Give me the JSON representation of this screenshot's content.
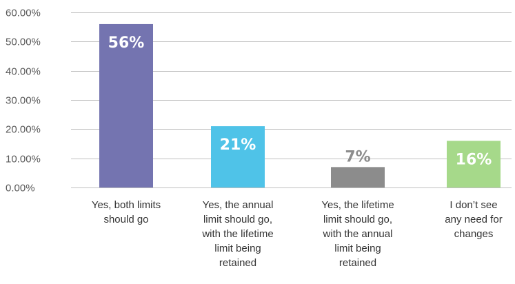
{
  "chart_data": {
    "type": "bar",
    "categories": [
      [
        "Yes, both limits",
        "should go"
      ],
      [
        "Yes, the annual",
        "limit should go,",
        "with the lifetime",
        "limit being",
        "retained"
      ],
      [
        "Yes, the lifetime",
        "limit should go,",
        "with the annual",
        "limit being",
        "retained"
      ],
      [
        "I don’t see",
        "any need for",
        "changes"
      ]
    ],
    "values": [
      56,
      21,
      7,
      16
    ],
    "data_labels": [
      "56%",
      "21%",
      "7%",
      "16%"
    ],
    "bar_colors": [
      "#7474b0",
      "#4fc3e8",
      "#8c8c8c",
      "#a6d98a"
    ],
    "label_colors": [
      "#ffffff",
      "#ffffff",
      "#8c8c8c",
      "#ffffff"
    ],
    "label_positions": [
      "inside",
      "inside",
      "above",
      "inside"
    ],
    "yticks": [
      "0.00%",
      "10.00%",
      "20.00%",
      "30.00%",
      "40.00%",
      "50.00%",
      "60.00%"
    ],
    "ylim": [
      0,
      60
    ],
    "grid": true,
    "title": "",
    "xlabel": "",
    "ylabel": ""
  }
}
